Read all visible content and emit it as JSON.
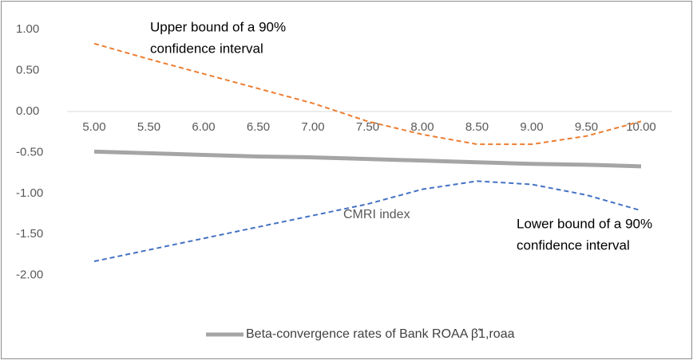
{
  "chart_data": {
    "type": "line",
    "categories": [
      "5.00",
      "5.50",
      "6.00",
      "6.50",
      "7.00",
      "7.50",
      "8.00",
      "8.50",
      "9.00",
      "9.50",
      "10.00"
    ],
    "series": [
      {
        "name": "Beta-convergence rates of Bank ROAA β̃1,roaa",
        "color": "#a5a5a5",
        "dash": false,
        "values": [
          -0.49,
          -0.51,
          -0.53,
          -0.55,
          -0.56,
          -0.58,
          -0.6,
          -0.62,
          -0.64,
          -0.65,
          -0.67
        ]
      },
      {
        "color": "#ed7d31",
        "dash": true,
        "values": [
          0.83,
          0.64,
          0.46,
          0.28,
          0.1,
          -0.12,
          -0.28,
          -0.4,
          -0.4,
          -0.3,
          -0.12
        ]
      },
      {
        "color": "#4472c4",
        "dash": true,
        "values": [
          -1.83,
          -1.69,
          -1.55,
          -1.41,
          -1.27,
          -1.13,
          -0.95,
          -0.85,
          -0.89,
          -1.02,
          -1.21
        ]
      }
    ],
    "ylim": [
      -2,
      1
    ],
    "yticks": [
      {
        "value": 1,
        "label": "1.00"
      },
      {
        "value": 0.5,
        "label": "0.50"
      },
      {
        "value": 0,
        "label": "0.00"
      },
      {
        "value": -0.5,
        "label": "-0.50"
      },
      {
        "value": -1,
        "label": "-1.00"
      },
      {
        "value": -1.5,
        "label": "-1.50"
      },
      {
        "value": -2,
        "label": "-2.00"
      }
    ],
    "annotations": [
      {
        "lines": [
          "Upper bound of a 90%",
          "confidence interval"
        ]
      },
      {
        "lines": [
          "CMRI index"
        ]
      },
      {
        "lines": [
          "Lower bound of a 90%",
          "confidence interval"
        ]
      }
    ],
    "legend": "bottom"
  }
}
